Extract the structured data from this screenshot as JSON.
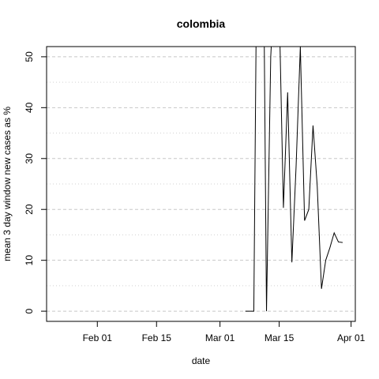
{
  "chart_data": {
    "type": "line",
    "title": "colombia",
    "xlabel": "date",
    "ylabel": "mean  3  day window new cases as %",
    "xlim": [
      "2020-01-20",
      "2020-04-02"
    ],
    "ylim": [
      -2,
      52
    ],
    "x_ticks": [
      {
        "date": "2020-02-01",
        "label": "Feb 01"
      },
      {
        "date": "2020-02-15",
        "label": "Feb 15"
      },
      {
        "date": "2020-03-01",
        "label": "Mar 01"
      },
      {
        "date": "2020-03-15",
        "label": "Mar 15"
      },
      {
        "date": "2020-04-01",
        "label": "Apr 01"
      }
    ],
    "y_ticks": [
      0,
      10,
      20,
      30,
      40,
      50
    ],
    "grid": "dashed horizontal major, dotted horizontal minor",
    "clip_to_plot": true,
    "series": [
      {
        "x": [
          "2020-03-07",
          "2020-03-08",
          "2020-03-09",
          "2020-03-10",
          "2020-03-11",
          "2020-03-12",
          "2020-03-13",
          "2020-03-14",
          "2020-03-15",
          "2020-03-16",
          "2020-03-17",
          "2020-03-18",
          "2020-03-19",
          "2020-03-20",
          "2020-03-21",
          "2020-03-22",
          "2020-03-23",
          "2020-03-24",
          "2020-03-25",
          "2020-03-26",
          "2020-03-27",
          "2020-03-28",
          "2020-03-29",
          "2020-03-30",
          "2020-03-31"
        ],
        "y": [
          0,
          0,
          0,
          100,
          100,
          0,
          50,
          66.7,
          60,
          20.3,
          43.0,
          9.6,
          28.5,
          52.0,
          17.8,
          20.0,
          36.5,
          24.5,
          4.4,
          10.0,
          12.5,
          15.4,
          13.6,
          13.5,
          null
        ]
      }
    ],
    "color": "#000000"
  }
}
